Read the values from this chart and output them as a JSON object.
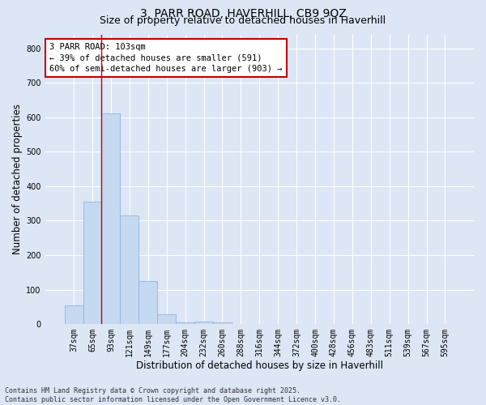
{
  "title_line1": "3, PARR ROAD, HAVERHILL, CB9 9QZ",
  "title_line2": "Size of property relative to detached houses in Haverhill",
  "xlabel": "Distribution of detached houses by size in Haverhill",
  "ylabel": "Number of detached properties",
  "categories": [
    "37sqm",
    "65sqm",
    "93sqm",
    "121sqm",
    "149sqm",
    "177sqm",
    "204sqm",
    "232sqm",
    "260sqm",
    "288sqm",
    "316sqm",
    "344sqm",
    "372sqm",
    "400sqm",
    "428sqm",
    "456sqm",
    "483sqm",
    "511sqm",
    "539sqm",
    "567sqm",
    "595sqm"
  ],
  "values": [
    55,
    355,
    610,
    315,
    125,
    28,
    5,
    8,
    5,
    0,
    0,
    0,
    0,
    0,
    0,
    0,
    0,
    0,
    0,
    0,
    0
  ],
  "bar_color": "#c5d9f0",
  "bar_edge_color": "#8db4e2",
  "vline_x": 1.5,
  "vline_color": "#c00000",
  "annotation_text": "3 PARR ROAD: 103sqm\n← 39% of detached houses are smaller (591)\n60% of semi-detached houses are larger (903) →",
  "annotation_box_facecolor": "#ffffff",
  "annotation_box_edgecolor": "#c00000",
  "ylim": [
    0,
    840
  ],
  "yticks": [
    0,
    100,
    200,
    300,
    400,
    500,
    600,
    700,
    800
  ],
  "background_color": "#dce6f5",
  "plot_bg_color": "#dce6f5",
  "footer_text": "Contains HM Land Registry data © Crown copyright and database right 2025.\nContains public sector information licensed under the Open Government Licence v3.0.",
  "grid_color": "#ffffff",
  "title_fontsize": 10,
  "subtitle_fontsize": 9,
  "tick_fontsize": 7,
  "label_fontsize": 8.5,
  "annotation_fontsize": 7.5,
  "footer_fontsize": 6
}
